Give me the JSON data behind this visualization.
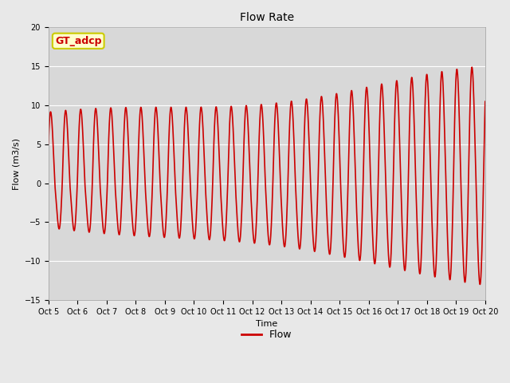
{
  "title": "Flow Rate",
  "xlabel": "Time",
  "ylabel": "Flow (m3/s)",
  "ylim": [
    -15,
    20
  ],
  "yticks": [
    -15,
    -10,
    -5,
    0,
    5,
    10,
    15,
    20
  ],
  "num_days": 15,
  "line_color": "#cc0000",
  "line_width": 1.2,
  "bg_color": "#e8e8e8",
  "plot_bg_color": "#d8d8d8",
  "legend_label": "Flow",
  "annotation_text": "GT_adcp",
  "annotation_bg": "#ffffcc",
  "annotation_border": "#cccc00",
  "annotation_text_color": "#cc0000",
  "tidal_period_hours": 12.4,
  "grid_color": "#ffffff",
  "title_fontsize": 10,
  "label_fontsize": 8,
  "tick_fontsize": 7,
  "legend_fontsize": 9
}
